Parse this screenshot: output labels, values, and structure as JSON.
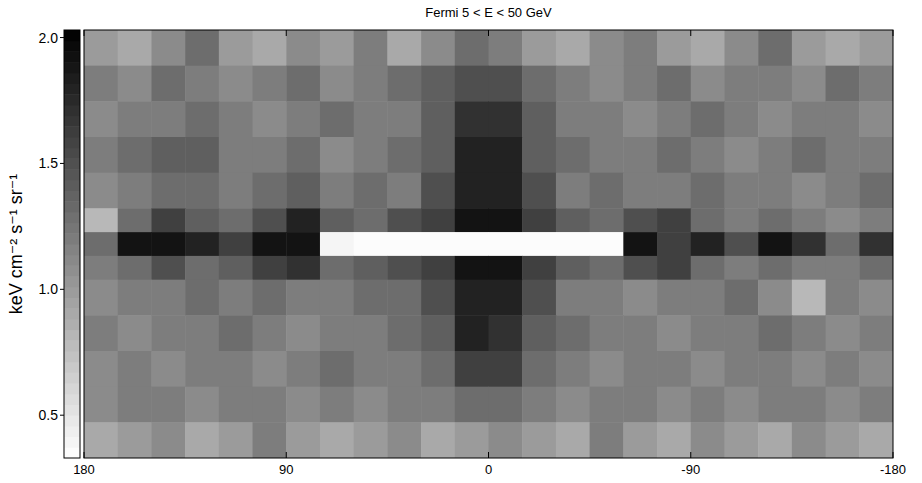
{
  "chart_data": {
    "type": "heatmap",
    "title": "Fermi 5 < E < 50 GeV",
    "colorbar_label": "keV cm⁻² s⁻¹ sr⁻¹",
    "colorbar_range": [
      0.33,
      2.03
    ],
    "colorbar_ticks": [
      {
        "value": 2,
        "label": "2.0"
      },
      1.5,
      {
        "value": 1,
        "label": "1.0"
      },
      0.5
    ],
    "xlim": [
      180,
      -180
    ],
    "ylim": [
      -90,
      90
    ],
    "xticks": [
      180,
      90,
      0,
      -90,
      -180
    ],
    "tick_labels": "x",
    "x_bins": [
      180,
      165,
      150,
      135,
      120,
      105,
      90,
      75,
      60,
      45,
      30,
      15,
      0,
      -15,
      -30,
      -45,
      -60,
      -75,
      -90,
      -105,
      -120,
      -135,
      -150,
      -165,
      -180
    ],
    "y_bins": [
      90,
      75,
      60,
      45,
      30,
      15,
      5,
      -5,
      -15,
      -30,
      -45,
      -60,
      -75,
      -90
    ],
    "cells": [
      [
        1.0,
        0.9,
        1.1,
        1.3,
        1.0,
        0.9,
        1.1,
        1.0,
        1.2,
        0.9,
        1.1,
        1.3,
        1.2,
        1.0,
        0.9,
        1.1,
        1.2,
        1.0,
        0.9,
        1.1,
        1.3,
        1.0,
        0.9,
        1.0
      ],
      [
        1.2,
        1.1,
        1.3,
        1.2,
        1.1,
        1.2,
        1.3,
        1.1,
        1.2,
        1.3,
        1.4,
        1.5,
        1.5,
        1.3,
        1.2,
        1.1,
        1.2,
        1.3,
        1.1,
        1.2,
        1.2,
        1.1,
        1.3,
        1.2
      ],
      [
        1.1,
        1.2,
        1.2,
        1.3,
        1.2,
        1.1,
        1.2,
        1.3,
        1.2,
        1.2,
        1.4,
        1.7,
        1.7,
        1.4,
        1.2,
        1.2,
        1.1,
        1.2,
        1.3,
        1.2,
        1.1,
        1.2,
        1.2,
        1.1
      ],
      [
        1.2,
        1.3,
        1.4,
        1.4,
        1.2,
        1.2,
        1.3,
        1.1,
        1.2,
        1.3,
        1.4,
        1.8,
        1.8,
        1.4,
        1.3,
        1.2,
        1.2,
        1.3,
        1.2,
        1.1,
        1.2,
        1.3,
        1.2,
        1.2
      ],
      [
        1.1,
        1.2,
        1.3,
        1.3,
        1.2,
        1.3,
        1.4,
        1.2,
        1.3,
        1.2,
        1.5,
        1.8,
        1.8,
        1.5,
        1.2,
        1.3,
        1.2,
        1.2,
        1.3,
        1.2,
        1.2,
        1.1,
        1.2,
        1.3
      ],
      [
        0.8,
        1.3,
        1.6,
        1.4,
        1.3,
        1.5,
        1.8,
        1.4,
        1.3,
        1.5,
        1.6,
        1.9,
        1.9,
        1.6,
        1.4,
        1.3,
        1.5,
        1.6,
        1.3,
        1.2,
        1.3,
        1.2,
        1.1,
        1.2
      ],
      [
        1.3,
        1.9,
        1.9,
        1.8,
        1.6,
        1.9,
        1.9,
        0.4,
        0.35,
        0.35,
        0.35,
        0.35,
        0.35,
        0.35,
        0.35,
        0.35,
        1.9,
        1.6,
        1.8,
        1.5,
        1.9,
        1.7,
        1.3,
        1.7
      ],
      [
        1.2,
        1.3,
        1.5,
        1.3,
        1.4,
        1.6,
        1.7,
        1.3,
        1.4,
        1.5,
        1.6,
        1.9,
        1.9,
        1.6,
        1.4,
        1.3,
        1.5,
        1.6,
        1.3,
        1.2,
        1.3,
        1.2,
        1.2,
        1.3
      ],
      [
        1.1,
        1.2,
        1.2,
        1.3,
        1.2,
        1.3,
        1.2,
        1.2,
        1.3,
        1.3,
        1.5,
        1.8,
        1.8,
        1.5,
        1.2,
        1.2,
        1.1,
        1.2,
        1.2,
        1.3,
        1.1,
        0.8,
        1.2,
        1.1
      ],
      [
        1.2,
        1.1,
        1.2,
        1.2,
        1.3,
        1.2,
        1.1,
        1.2,
        1.2,
        1.3,
        1.4,
        1.8,
        1.7,
        1.4,
        1.3,
        1.2,
        1.2,
        1.1,
        1.2,
        1.2,
        1.3,
        1.2,
        1.1,
        1.2
      ],
      [
        1.1,
        1.2,
        1.1,
        1.2,
        1.2,
        1.1,
        1.2,
        1.3,
        1.2,
        1.2,
        1.3,
        1.6,
        1.6,
        1.3,
        1.2,
        1.1,
        1.2,
        1.2,
        1.1,
        1.2,
        1.2,
        1.1,
        1.2,
        1.1
      ],
      [
        1.1,
        1.2,
        1.2,
        1.1,
        1.2,
        1.2,
        1.1,
        1.2,
        1.1,
        1.2,
        1.2,
        1.3,
        1.3,
        1.2,
        1.1,
        1.2,
        1.2,
        1.1,
        1.2,
        1.1,
        1.2,
        1.2,
        1.1,
        1.2
      ],
      [
        0.9,
        1.0,
        1.1,
        0.9,
        1.0,
        1.2,
        1.0,
        0.9,
        1.0,
        1.1,
        0.9,
        1.0,
        1.1,
        1.0,
        0.9,
        1.2,
        1.0,
        0.9,
        1.1,
        1.0,
        0.9,
        1.1,
        1.0,
        0.9
      ]
    ]
  }
}
